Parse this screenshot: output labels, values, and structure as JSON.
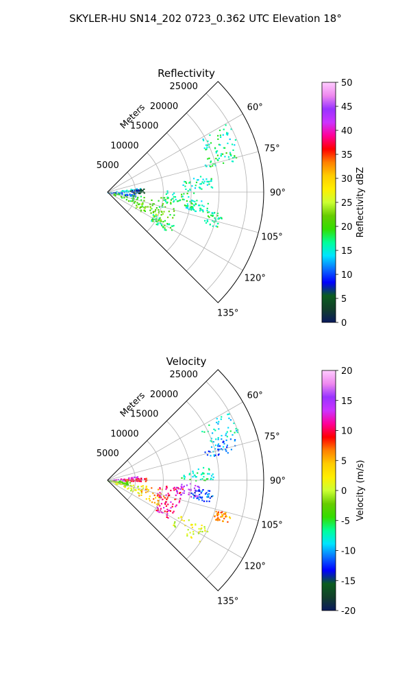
{
  "figure_title": "SKYLER-HU  SN14_202  0723_0.362 UTC Elevation 18°",
  "colors": {
    "grid": "#b0b0b0",
    "axis": "#000000",
    "background": "#ffffff"
  },
  "chart_data": [
    {
      "type": "polar-sector-radar",
      "title": "Reflectivity",
      "radial_label": "Meters",
      "radial_ticks": [
        "5000",
        "10000",
        "15000",
        "20000",
        "25000"
      ],
      "radial_tick_values": [
        5000,
        10000,
        15000,
        20000,
        25000
      ],
      "rlim": [
        0,
        28000
      ],
      "angle_range_deg": [
        45,
        135
      ],
      "angle_ticks": [
        "60°",
        "75°",
        "90°",
        "105°",
        "120°",
        "135°"
      ],
      "angle_tick_values": [
        60,
        75,
        90,
        105,
        120,
        135
      ],
      "grid": true,
      "colorbar": {
        "label": "Reflectivity dBZ",
        "ticks": [
          "0",
          "5",
          "10",
          "15",
          "20",
          "25",
          "30",
          "35",
          "40",
          "45",
          "50"
        ],
        "min": 0,
        "max": 50,
        "stops": [
          "#0b1a5e",
          "#123f2a",
          "#0b5d1e",
          "#0000ff",
          "#0a6fff",
          "#00e5ff",
          "#00ff99",
          "#33dd00",
          "#66cc00",
          "#ccff33",
          "#ffee00",
          "#ffcc00",
          "#ff8000",
          "#ff0000",
          "#ff0099",
          "#cc33ff",
          "#9933ff",
          "#ee88ee",
          "#ffccff"
        ]
      },
      "echo_regions": [
        {
          "range": [
            1500,
            6000
          ],
          "azimuth": [
            81,
            90
          ],
          "value": 14
        },
        {
          "range": [
            4000,
            6500
          ],
          "azimuth": [
            84,
            92
          ],
          "value": 5
        },
        {
          "range": [
            0,
            5000
          ],
          "azimuth": [
            90,
            100
          ],
          "value": 10
        },
        {
          "range": [
            1000,
            12500
          ],
          "azimuth": [
            95,
            113
          ],
          "value": 20
        },
        {
          "range": [
            5000,
            11000
          ],
          "azimuth": [
            108,
            120
          ],
          "value": 22
        },
        {
          "range": [
            9000,
            13500
          ],
          "azimuth": [
            116,
            124
          ],
          "value": 18
        },
        {
          "range": [
            10000,
            15500
          ],
          "azimuth": [
            88,
            100
          ],
          "value": 17
        },
        {
          "range": [
            13500,
            19000
          ],
          "azimuth": [
            80,
            88
          ],
          "value": 16
        },
        {
          "range": [
            19000,
            25000
          ],
          "azimuth": [
            60,
            70
          ],
          "value": 16
        },
        {
          "range": [
            18000,
            24000
          ],
          "azimuth": [
            71,
            76
          ],
          "value": 17
        },
        {
          "range": [
            14000,
            18000
          ],
          "azimuth": [
            95,
            102
          ],
          "value": 16
        },
        {
          "range": [
            18000,
            21000
          ],
          "azimuth": [
            100,
            108
          ],
          "value": 17
        }
      ]
    },
    {
      "type": "polar-sector-radar",
      "title": "Velocity",
      "radial_label": "Meters",
      "radial_ticks": [
        "5000",
        "10000",
        "15000",
        "20000",
        "25000"
      ],
      "radial_tick_values": [
        5000,
        10000,
        15000,
        20000,
        25000
      ],
      "rlim": [
        0,
        28000
      ],
      "angle_range_deg": [
        45,
        135
      ],
      "angle_ticks": [
        "60°",
        "75°",
        "90°",
        "105°",
        "120°",
        "135°"
      ],
      "angle_tick_values": [
        60,
        75,
        90,
        105,
        120,
        135
      ],
      "grid": true,
      "colorbar": {
        "label": "Velocity (m/s)",
        "ticks": [
          "-20",
          "-15",
          "-10",
          "-5",
          "0",
          "5",
          "10",
          "15",
          "20"
        ],
        "min": -20,
        "max": 20,
        "stops": [
          "#0b1a5e",
          "#123f2a",
          "#0b5d1e",
          "#0000ff",
          "#0a6fff",
          "#00e5ff",
          "#00ff99",
          "#33dd00",
          "#66cc00",
          "#ccff33",
          "#ffee00",
          "#ffcc00",
          "#ff8000",
          "#ff0000",
          "#ff0099",
          "#cc33ff",
          "#9933ff",
          "#ee88ee",
          "#ffccff"
        ]
      },
      "echo_regions": [
        {
          "range": [
            500,
            6000
          ],
          "azimuth": [
            82,
            90
          ],
          "value": 13
        },
        {
          "range": [
            3000,
            7000
          ],
          "azimuth": [
            86,
            91
          ],
          "value": 9
        },
        {
          "range": [
            0,
            4000
          ],
          "azimuth": [
            92,
            104
          ],
          "value": -3
        },
        {
          "range": [
            1000,
            7000
          ],
          "azimuth": [
            100,
            114
          ],
          "value": 1
        },
        {
          "range": [
            6000,
            11000
          ],
          "azimuth": [
            98,
            116
          ],
          "value": 5
        },
        {
          "range": [
            9000,
            13500
          ],
          "azimuth": [
            95,
            108
          ],
          "value": 10
        },
        {
          "range": [
            10000,
            13000
          ],
          "azimuth": [
            108,
            122
          ],
          "value": 11
        },
        {
          "range": [
            12000,
            16500
          ],
          "azimuth": [
            92,
            101
          ],
          "value": 15
        },
        {
          "range": [
            13000,
            19000
          ],
          "azimuth": [
            82,
            90
          ],
          "value": -7
        },
        {
          "range": [
            19000,
            25000
          ],
          "azimuth": [
            60,
            70
          ],
          "value": -8
        },
        {
          "range": [
            18000,
            24000
          ],
          "azimuth": [
            71,
            77
          ],
          "value": -11
        },
        {
          "range": [
            15000,
            19000
          ],
          "azimuth": [
            95,
            102
          ],
          "value": -12
        },
        {
          "range": [
            14000,
            20000
          ],
          "azimuth": [
            115,
            125
          ],
          "value": 1
        },
        {
          "range": [
            20000,
            23000
          ],
          "azimuth": [
            105,
            110
          ],
          "value": 6
        }
      ]
    }
  ]
}
